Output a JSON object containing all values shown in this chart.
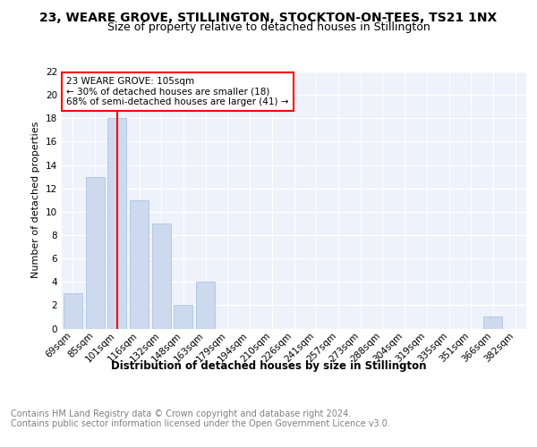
{
  "title": "23, WEARE GROVE, STILLINGTON, STOCKTON-ON-TEES, TS21 1NX",
  "subtitle": "Size of property relative to detached houses in Stillington",
  "xlabel": "Distribution of detached houses by size in Stillington",
  "ylabel": "Number of detached properties",
  "categories": [
    "69sqm",
    "85sqm",
    "101sqm",
    "116sqm",
    "132sqm",
    "148sqm",
    "163sqm",
    "179sqm",
    "194sqm",
    "210sqm",
    "226sqm",
    "241sqm",
    "257sqm",
    "273sqm",
    "288sqm",
    "304sqm",
    "319sqm",
    "335sqm",
    "351sqm",
    "366sqm",
    "382sqm"
  ],
  "values": [
    3,
    13,
    18,
    11,
    9,
    2,
    4,
    0,
    0,
    0,
    0,
    0,
    0,
    0,
    0,
    0,
    0,
    0,
    0,
    1,
    0
  ],
  "bar_color": "#ccd9ee",
  "bar_edge_color": "#a8bee0",
  "vline_index": 2.0,
  "annotation_text": "23 WEARE GROVE: 105sqm\n← 30% of detached houses are smaller (18)\n68% of semi-detached houses are larger (41) →",
  "annotation_box_color": "white",
  "annotation_box_edge_color": "red",
  "vline_color": "red",
  "ylim": [
    0,
    22
  ],
  "yticks": [
    0,
    2,
    4,
    6,
    8,
    10,
    12,
    14,
    16,
    18,
    20,
    22
  ],
  "background_color": "#eef2fb",
  "footer_text": "Contains HM Land Registry data © Crown copyright and database right 2024.\nContains public sector information licensed under the Open Government Licence v3.0.",
  "title_fontsize": 10,
  "subtitle_fontsize": 9,
  "xlabel_fontsize": 8.5,
  "ylabel_fontsize": 8,
  "footer_fontsize": 7,
  "tick_fontsize": 7.5,
  "annot_fontsize": 7.5
}
